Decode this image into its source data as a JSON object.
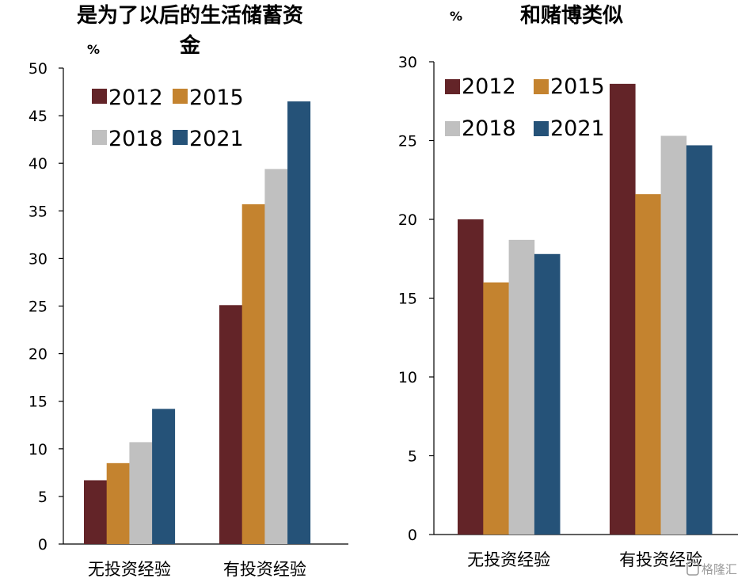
{
  "colors": {
    "2012": "#632428",
    "2015": "#c4832f",
    "2018": "#c0c0c0",
    "2021": "#255278"
  },
  "watermark": "格隆汇",
  "chart_data": [
    {
      "type": "bar",
      "title_line1": "是为了以后的生活储蓄资",
      "title_line2": "金",
      "unit": "%",
      "categories": [
        "无投资经验",
        "有投资经验"
      ],
      "ylim": [
        0,
        50
      ],
      "yticks": [
        0,
        5,
        10,
        15,
        20,
        25,
        30,
        35,
        40,
        45,
        50
      ],
      "legend_position": "top-left",
      "grid": false,
      "series": [
        {
          "name": "2012",
          "values": [
            6.7,
            25.1
          ]
        },
        {
          "name": "2015",
          "values": [
            8.5,
            35.7
          ]
        },
        {
          "name": "2018",
          "values": [
            10.7,
            39.4
          ]
        },
        {
          "name": "2021",
          "values": [
            14.2,
            46.5
          ]
        }
      ]
    },
    {
      "type": "bar",
      "title_line1": "和赌博类似",
      "title_line2": "",
      "unit": "%",
      "categories": [
        "无投资经验",
        "有投资经验"
      ],
      "ylim": [
        0,
        30
      ],
      "yticks": [
        0,
        5,
        10,
        15,
        20,
        25,
        30
      ],
      "legend_position": "top-left",
      "grid": false,
      "series": [
        {
          "name": "2012",
          "values": [
            20.0,
            28.6
          ]
        },
        {
          "name": "2015",
          "values": [
            16.0,
            21.6
          ]
        },
        {
          "name": "2018",
          "values": [
            18.7,
            25.3
          ]
        },
        {
          "name": "2021",
          "values": [
            17.8,
            24.7
          ]
        }
      ]
    }
  ]
}
